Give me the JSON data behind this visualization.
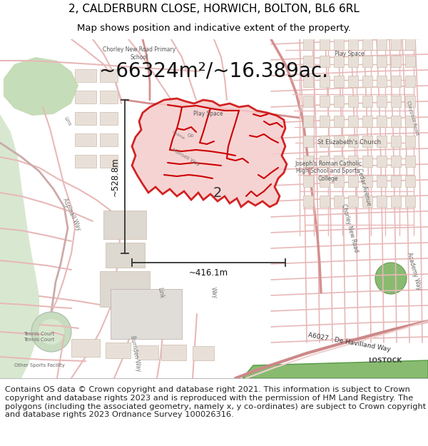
{
  "title_line1": "2, CALDERBURN CLOSE, HORWICH, BOLTON, BL6 6RL",
  "title_line2": "Map shows position and indicative extent of the property.",
  "area_text": "~66324m²/~16.389ac.",
  "label_number": "2",
  "dim_vertical": "~528.8m",
  "dim_horizontal": "~416.1m",
  "footer_text": "Contains OS data © Crown copyright and database right 2021. This information is subject to Crown copyright and database rights 2023 and is reproduced with the permission of HM Land Registry. The polygons (including the associated geometry, namely x, y co-ordinates) are subject to Crown copyright and database rights 2023 Ordnance Survey 100026316.",
  "map_bg": "#f2ede9",
  "road_light": "#e8b8b8",
  "road_medium": "#d49090",
  "road_dark": "#cc7777",
  "building_face": "#e8e0d8",
  "building_edge": "#ccbbaa",
  "polygon_fill": "#f5cccc",
  "polygon_edge": "#cc0000",
  "green_fill": "#c8dcc0",
  "green_strip": "#88b870",
  "dim_color": "#333333",
  "title_fontsize": 11,
  "subtitle_fontsize": 9.5,
  "area_fontsize": 20,
  "footer_fontsize": 8.2,
  "label_fontsize": 14
}
